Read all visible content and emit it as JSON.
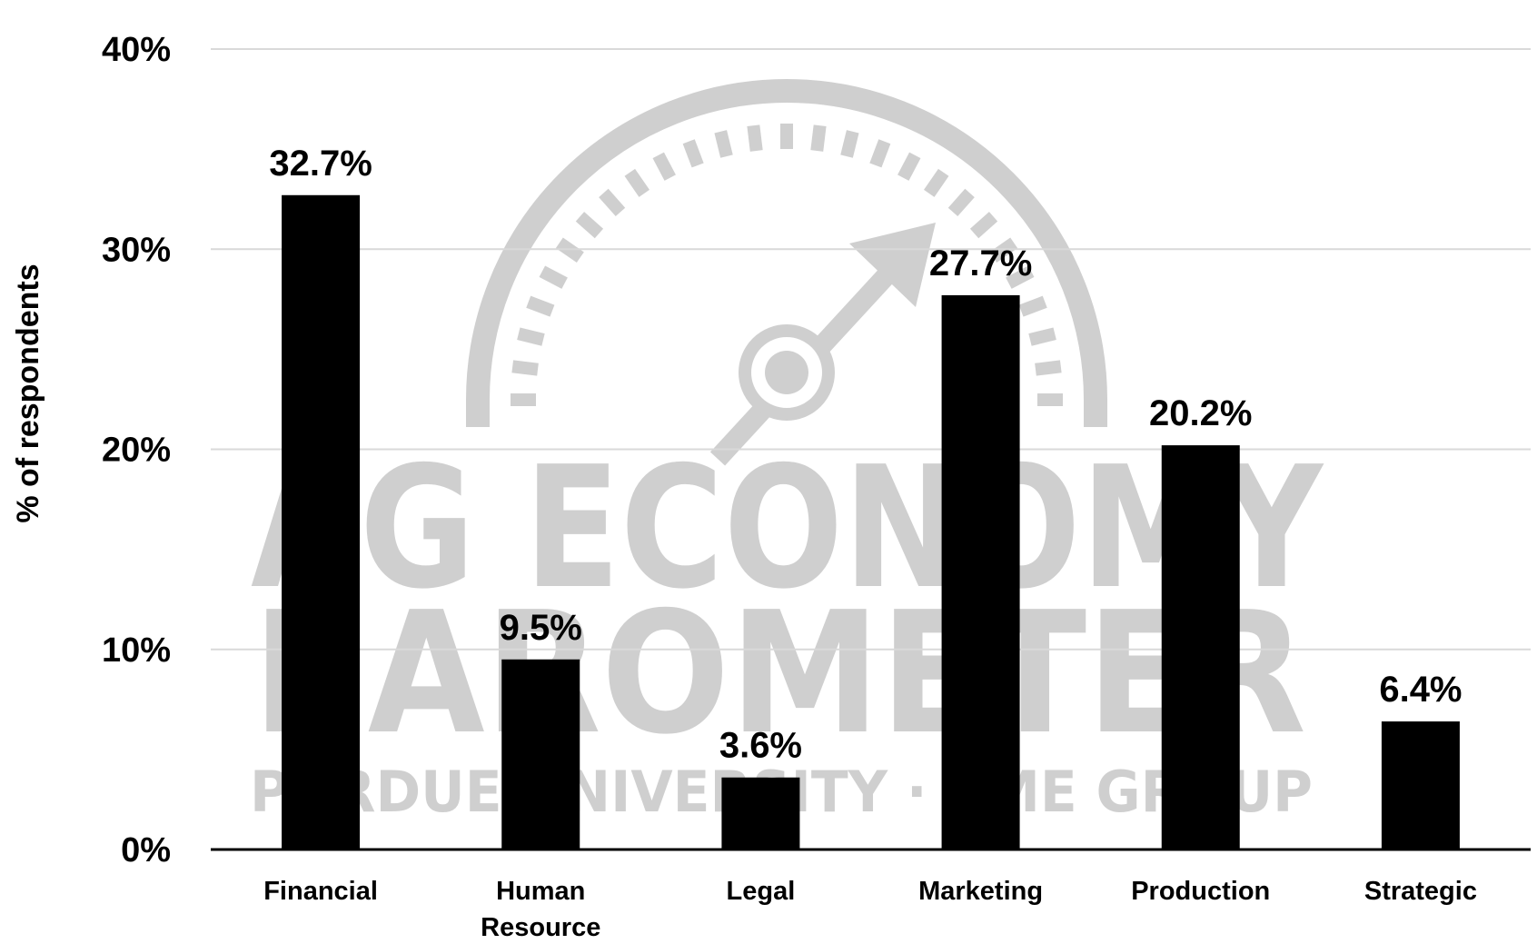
{
  "watermark": {
    "line1": "AG ECONOMY",
    "line2": "BAROMETER",
    "line3": "PURDUE UNIVERSITY · CME GROUP",
    "color": "#cfcfcf"
  },
  "chart_data": {
    "type": "bar",
    "categories": [
      "Financial",
      "Human Resource",
      "Legal",
      "Marketing",
      "Production",
      "Strategic"
    ],
    "values": [
      32.7,
      9.5,
      3.6,
      27.7,
      20.2,
      6.4
    ],
    "data_labels": [
      "32.7%",
      "9.5%",
      "3.6%",
      "27.7%",
      "20.2%",
      "6.4%"
    ],
    "yticks": [
      0,
      10,
      20,
      30,
      40
    ],
    "ytick_labels": [
      "0%",
      "10%",
      "20%",
      "30%",
      "40%"
    ],
    "ylim": [
      0,
      40
    ],
    "ylabel": "% of respondents",
    "xlabel": "",
    "title": "",
    "grid": true,
    "legend": "none",
    "bar_color": "#000000",
    "grid_color": "#d9d9d9"
  }
}
